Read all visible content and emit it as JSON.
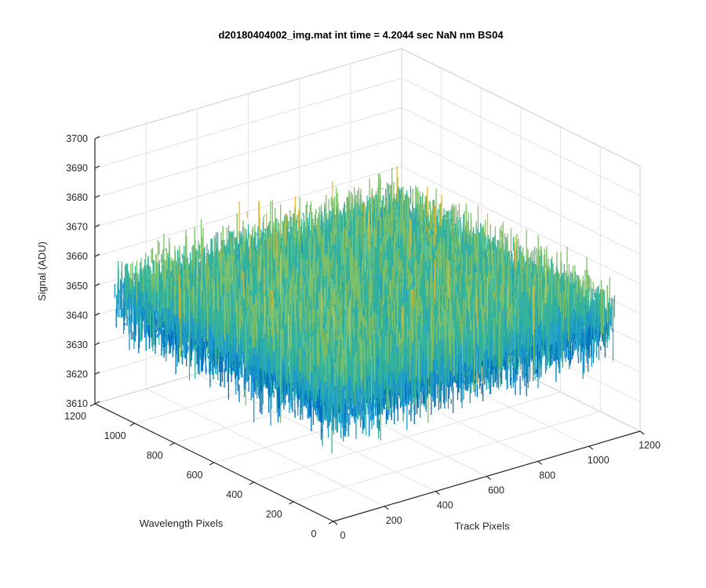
{
  "chart_data": {
    "type": "surface",
    "title": "d20180404002_img.mat int time = 4.2044 sec  NaN nm BS04",
    "zlabel": "Signal (ADU)",
    "xlabel": "Track Pixels",
    "ylabel": "Wavelength Pixels",
    "xlim": [
      0,
      1200
    ],
    "ylim": [
      0,
      1200
    ],
    "zlim": [
      3610,
      3700
    ],
    "xticks": [
      "0",
      "200",
      "400",
      "600",
      "800",
      "1000",
      "1200"
    ],
    "yticks": [
      "0",
      "200",
      "400",
      "600",
      "800",
      "1000",
      "1200"
    ],
    "zticks": [
      "3610",
      "3620",
      "3630",
      "3640",
      "3650",
      "3660",
      "3670",
      "3680",
      "3690",
      "3700"
    ],
    "surface_data_extent": {
      "x": [
        0,
        1100
      ],
      "y": [
        0,
        1100
      ]
    },
    "surface_mean": 3650,
    "surface_noise_range": [
      3615,
      3690
    ],
    "grid": true,
    "colormap": [
      "#0072bd",
      "#1c9ac8",
      "#35b29b",
      "#7fc16a",
      "#e8b93a"
    ]
  }
}
